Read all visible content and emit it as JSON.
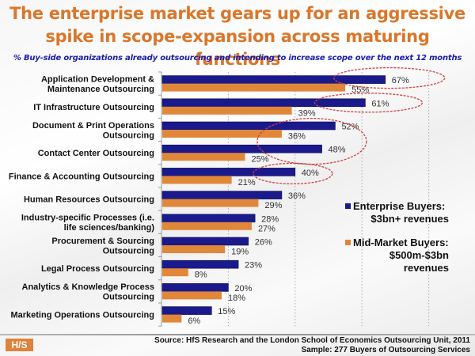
{
  "header": {
    "title_line1": "The enterprise market gears up for an aggressive",
    "title_line2": "spike in scope-expansion across maturing functions",
    "subtitle": "% Buy-side organizations already outsourcing and intending to increase scope over the next 12 months"
  },
  "footer": {
    "logo_text": "H/S",
    "source_line1": "Source:  HfS Research and the London School of Economics Outsourcing Unit, 2011",
    "source_line2": "Sample: 277 Buyers of Outsourcing Services"
  },
  "colors": {
    "title": "#d9772b",
    "subtitle": "#1b1bb0",
    "enterprise": "#1a1a8c",
    "midmarket": "#e0873a",
    "highlight_ellipse": "#d04040"
  },
  "chart_data": {
    "type": "bar",
    "orientation": "horizontal",
    "title": "The enterprise market gears up for an aggressive spike in scope-expansion across maturing functions",
    "subtitle": "% Buy-side organizations already outsourcing and intending to increase scope over the next 12 months",
    "xlabel": "",
    "ylabel": "",
    "xlim": [
      0,
      80
    ],
    "gridlines": [
      20,
      40,
      60,
      80
    ],
    "grid": true,
    "legend_position": "right",
    "value_suffix": "%",
    "categories": [
      [
        "Application Development &",
        "Maintenance Outsourcing"
      ],
      [
        "IT Infrastructure Outsourcing"
      ],
      [
        "Document & Print Operations",
        "Outsourcing"
      ],
      [
        "Contact Center Outsourcing"
      ],
      [
        "Finance & Accounting Outsourcing"
      ],
      [
        "Human Resources Outsourcing"
      ],
      [
        "Industry-specific Processes (i.e.",
        "life sciences/banking)"
      ],
      [
        "Procurement & Sourcing",
        "Outsourcing"
      ],
      [
        "Legal Process Outsourcing"
      ],
      [
        "Analytics & Knowledge Process",
        "Outsourcing"
      ],
      [
        "Marketing Operations Outsourcing"
      ]
    ],
    "series": [
      {
        "name": "Enterprise Buyers: $3bn+ revenues",
        "legend_lines": [
          "Enterprise Buyers:",
          "$3bn+ revenues"
        ],
        "color": "#1a1a8c",
        "values": [
          67,
          61,
          52,
          48,
          40,
          36,
          28,
          26,
          23,
          20,
          15
        ]
      },
      {
        "name": "Mid-Market Buyers: $500m-$3bn revenues",
        "legend_lines": [
          "Mid-Market Buyers:",
          "$500m-$3bn",
          "revenues"
        ],
        "color": "#e0873a",
        "values": [
          55,
          39,
          36,
          25,
          21,
          29,
          27,
          19,
          8,
          18,
          6
        ]
      }
    ],
    "annotations": [
      {
        "type": "ellipse-highlight",
        "category_index": 0,
        "series": "Enterprise",
        "value": 67
      },
      {
        "type": "ellipse-highlight",
        "category_index": 1,
        "series": "Enterprise",
        "value": 61
      },
      {
        "type": "ellipse-highlight",
        "category_index": [
          2,
          3
        ],
        "series": "both",
        "values": [
          52,
          36,
          48
        ]
      },
      {
        "type": "ellipse-highlight",
        "category_index": 4,
        "series": "Enterprise",
        "value": 40
      }
    ]
  }
}
